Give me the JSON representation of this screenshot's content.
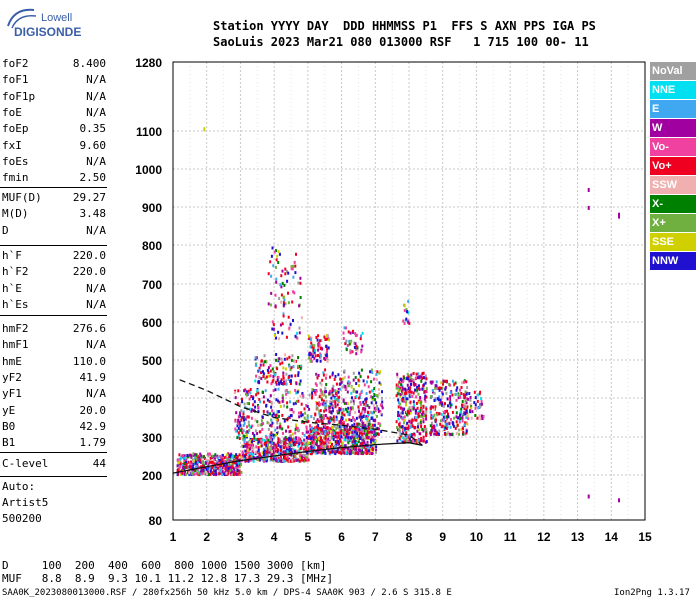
{
  "logo": {
    "line1": "Lowell",
    "line2": "DIGISONDE"
  },
  "header": {
    "row1": "Station YYYY DAY  DDD HHMMSS P1  FFS S AXN PPS IGA PS",
    "row2": "SaoLuis 2023 Mar21 080 013000 RSF   1 715 100 00- 11"
  },
  "params": {
    "group1": [
      {
        "label": "foF2",
        "value": "8.400"
      },
      {
        "label": "foF1",
        "value": "N/A"
      },
      {
        "label": "foF1p",
        "value": "N/A"
      },
      {
        "label": "foE",
        "value": "N/A"
      },
      {
        "label": "foEp",
        "value": "0.35"
      },
      {
        "label": "fxI",
        "value": "9.60"
      },
      {
        "label": "foEs",
        "value": "N/A"
      },
      {
        "label": "fmin",
        "value": "2.50"
      }
    ],
    "group2": [
      {
        "label": "MUF(D)",
        "value": "29.27"
      },
      {
        "label": "M(D)",
        "value": "3.48"
      },
      {
        "label": "D",
        "value": "N/A"
      }
    ],
    "group3": [
      {
        "label": "h`F",
        "value": "220.0"
      },
      {
        "label": "h`F2",
        "value": "220.0"
      },
      {
        "label": "h`E",
        "value": "N/A"
      },
      {
        "label": "h`Es",
        "value": "N/A"
      }
    ],
    "group4": [
      {
        "label": "hmF2",
        "value": "276.6"
      },
      {
        "label": "hmF1",
        "value": "N/A"
      },
      {
        "label": "hmE",
        "value": "110.0"
      },
      {
        "label": "yF2",
        "value": "41.9"
      },
      {
        "label": "yF1",
        "value": "N/A"
      },
      {
        "label": "yE",
        "value": "20.0"
      },
      {
        "label": "B0",
        "value": "42.9"
      },
      {
        "label": "B1",
        "value": "1.79"
      }
    ],
    "group5": [
      {
        "label": "C-level",
        "value": "44"
      }
    ],
    "auto": [
      "Auto:",
      "Artist5",
      "500200"
    ]
  },
  "bottom": {
    "d_row": "D     100  200  400  600  800 1000 1500 3000 [km]",
    "muf_row": "MUF   8.8  8.9  9.3 10.1 11.2 12.8 17.3 29.3 [MHz]"
  },
  "footer": {
    "left": "SAA0K_2023080013000.RSF / 280fx256h 50 kHz 5.0 km / DPS-4 SAA0K 903 / 2.6 S 315.8 E",
    "right": "Ion2Png 1.3.17"
  },
  "legend": [
    {
      "label": "NoVal",
      "color": "#a0a0a0"
    },
    {
      "label": "NNE",
      "color": "#00e0f0"
    },
    {
      "label": "E",
      "color": "#40a8f0"
    },
    {
      "label": "W",
      "color": "#a000a0"
    },
    {
      "label": "Vo-",
      "color": "#f040a0"
    },
    {
      "label": "Vo+",
      "color": "#f00020"
    },
    {
      "label": "SSW",
      "color": "#f0b0b0"
    },
    {
      "label": "X-",
      "color": "#008000"
    },
    {
      "label": "X+",
      "color": "#70b040"
    },
    {
      "label": "SSE",
      "color": "#d0d000"
    },
    {
      "label": "NNW",
      "color": "#2010d0"
    }
  ],
  "chart_data": {
    "type": "scatter",
    "xticks": [
      "1",
      "2",
      "3",
      "4",
      "5",
      "6",
      "7",
      "8",
      "9",
      "10",
      "11",
      "12",
      "13",
      "14",
      "15"
    ],
    "yticks": [
      "80",
      "200",
      "300",
      "400",
      "500",
      "600",
      "700",
      "800",
      "900",
      "1000",
      "1100",
      "1280"
    ],
    "xlim": [
      1,
      15
    ],
    "ylim": [
      80,
      1280
    ],
    "grid": true,
    "clusters": [
      {
        "fmin": 1.1,
        "fmax": 3.0,
        "hmin": 205,
        "hmax": 260,
        "n": 500
      },
      {
        "fmin": 3.0,
        "fmax": 5.0,
        "hmin": 240,
        "hmax": 300,
        "n": 500
      },
      {
        "fmin": 5.0,
        "fmax": 7.0,
        "hmin": 260,
        "hmax": 330,
        "n": 500
      },
      {
        "fmin": 2.8,
        "fmax": 7.0,
        "hmin": 300,
        "hmax": 430,
        "n": 500
      },
      {
        "fmin": 5.2,
        "fmax": 7.2,
        "hmin": 310,
        "hmax": 480,
        "n": 350
      },
      {
        "fmin": 7.6,
        "fmax": 8.5,
        "hmin": 290,
        "hmax": 470,
        "n": 350
      },
      {
        "fmin": 8.6,
        "fmax": 9.7,
        "hmin": 310,
        "hmax": 450,
        "n": 250
      },
      {
        "fmin": 9.6,
        "fmax": 10.2,
        "hmin": 350,
        "hmax": 420,
        "n": 50
      },
      {
        "fmin": 3.4,
        "fmax": 4.8,
        "hmin": 440,
        "hmax": 520,
        "n": 120
      },
      {
        "fmin": 5.0,
        "fmax": 5.6,
        "hmin": 500,
        "hmax": 570,
        "n": 80
      },
      {
        "fmin": 3.8,
        "fmax": 4.8,
        "hmin": 560,
        "hmax": 800,
        "n": 90
      },
      {
        "fmin": 6.0,
        "fmax": 6.6,
        "hmin": 520,
        "hmax": 590,
        "n": 40
      },
      {
        "fmin": 7.8,
        "fmax": 8.0,
        "hmin": 600,
        "hmax": 680,
        "n": 15
      }
    ],
    "single_points": [
      {
        "f": 13.3,
        "h": 950,
        "color": "#a000a0"
      },
      {
        "f": 13.3,
        "h": 903,
        "color": "#a000a0"
      },
      {
        "f": 14.2,
        "h": 885,
        "color": "#a000a0"
      },
      {
        "f": 14.2,
        "h": 880,
        "color": "#a000a0"
      },
      {
        "f": 13.3,
        "h": 148,
        "color": "#a000a0"
      },
      {
        "f": 14.2,
        "h": 138,
        "color": "#a000a0"
      },
      {
        "f": 1.9,
        "h": 1110,
        "color": "#d0d000"
      }
    ],
    "trace_solid": [
      [
        1,
        205
      ],
      [
        2,
        222
      ],
      [
        3,
        238
      ],
      [
        4,
        250
      ],
      [
        5,
        262
      ],
      [
        6,
        272
      ],
      [
        7,
        280
      ],
      [
        8,
        285
      ],
      [
        8.4,
        278
      ]
    ],
    "trace_dashed": [
      [
        1.2,
        448
      ],
      [
        2,
        420
      ],
      [
        3,
        378
      ],
      [
        4,
        350
      ],
      [
        5,
        338
      ],
      [
        6,
        330
      ],
      [
        7,
        320
      ],
      [
        8,
        305
      ],
      [
        8.4,
        278
      ]
    ]
  }
}
